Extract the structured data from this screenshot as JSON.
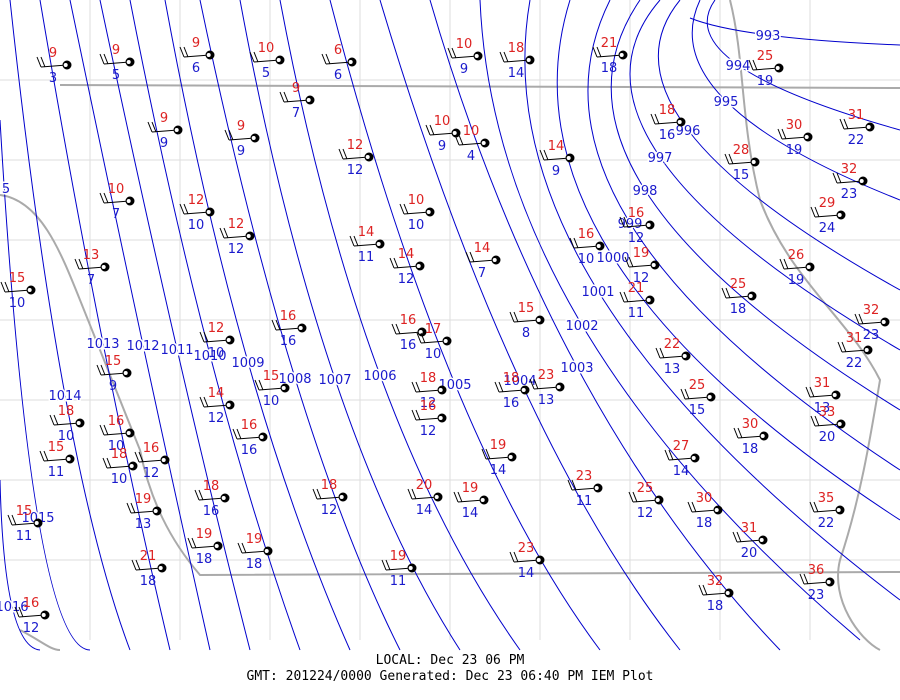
{
  "isobars": [
    {
      "label": "993"
    },
    {
      "label": "994"
    },
    {
      "label": "995"
    },
    {
      "label": "996"
    },
    {
      "label": "997"
    },
    {
      "label": "998"
    },
    {
      "label": "999"
    },
    {
      "label": "1000"
    },
    {
      "label": "1001"
    },
    {
      "label": "1002"
    },
    {
      "label": "1003"
    },
    {
      "label": "1004"
    },
    {
      "label": "1005"
    },
    {
      "label": "1006"
    },
    {
      "label": "1007"
    },
    {
      "label": "1008"
    },
    {
      "label": "1009"
    },
    {
      "label": "1010"
    },
    {
      "label": "1011"
    },
    {
      "label": "1012"
    },
    {
      "label": "1013"
    },
    {
      "label": "1014"
    },
    {
      "label": "1015"
    },
    {
      "label": "1016"
    },
    {
      "label": "5"
    }
  ],
  "stations": [
    {
      "temp": 9,
      "dewpoint": 3
    },
    {
      "temp": 9,
      "dewpoint": 5
    },
    {
      "temp": 9,
      "dewpoint": 6
    },
    {
      "temp": 10,
      "dewpoint": 5
    },
    {
      "temp": 6,
      "dewpoint": 6
    },
    {
      "temp": 10,
      "dewpoint": 9
    },
    {
      "temp": 18,
      "dewpoint": 14
    },
    {
      "temp": 21,
      "dewpoint": 18
    },
    {
      "temp": 25,
      "dewpoint": 19
    },
    {
      "temp": 9,
      "dewpoint": 7
    },
    {
      "temp": 9,
      "dewpoint": 9
    },
    {
      "temp": 9,
      "dewpoint": 9
    },
    {
      "temp": 12,
      "dewpoint": 12
    },
    {
      "temp": 10,
      "dewpoint": 9
    },
    {
      "temp": 10,
      "dewpoint": 4
    },
    {
      "temp": 14,
      "dewpoint": 9
    },
    {
      "temp": 18,
      "dewpoint": 16
    },
    {
      "temp": 30,
      "dewpoint": 19
    },
    {
      "temp": 31,
      "dewpoint": 22
    },
    {
      "temp": 28,
      "dewpoint": 15
    },
    {
      "temp": 32,
      "dewpoint": 23
    },
    {
      "temp": 29,
      "dewpoint": 24
    },
    {
      "temp": 10,
      "dewpoint": 7
    },
    {
      "temp": 12,
      "dewpoint": 10
    },
    {
      "temp": 12,
      "dewpoint": 12
    },
    {
      "temp": 10,
      "dewpoint": 10
    },
    {
      "temp": 14,
      "dewpoint": 11
    },
    {
      "temp": 14,
      "dewpoint": 12
    },
    {
      "temp": 14,
      "dewpoint": 7
    },
    {
      "temp": 16,
      "dewpoint": 10
    },
    {
      "temp": 16,
      "dewpoint": 12
    },
    {
      "temp": 15,
      "dewpoint": 10
    },
    {
      "temp": 13,
      "dewpoint": 7
    },
    {
      "temp": 21,
      "dewpoint": 11
    },
    {
      "temp": 19,
      "dewpoint": 12
    },
    {
      "temp": 25,
      "dewpoint": 18
    },
    {
      "temp": 26,
      "dewpoint": 19
    },
    {
      "temp": 32,
      "dewpoint": 23
    },
    {
      "temp": 31,
      "dewpoint": 22
    },
    {
      "temp": 12,
      "dewpoint": 10
    },
    {
      "temp": 16,
      "dewpoint": 16
    },
    {
      "temp": 16,
      "dewpoint": 16
    },
    {
      "temp": 17,
      "dewpoint": 10
    },
    {
      "temp": 15,
      "dewpoint": 8
    },
    {
      "temp": 15,
      "dewpoint": 9
    },
    {
      "temp": 15,
      "dewpoint": 10
    },
    {
      "temp": 14,
      "dewpoint": 12
    },
    {
      "temp": 18,
      "dewpoint": 12
    },
    {
      "temp": 16,
      "dewpoint": 12
    },
    {
      "temp": 18,
      "dewpoint": 16
    },
    {
      "temp": 23,
      "dewpoint": 13
    },
    {
      "temp": 22,
      "dewpoint": 13
    },
    {
      "temp": 25,
      "dewpoint": 15
    },
    {
      "temp": 31,
      "dewpoint": 13
    },
    {
      "temp": 33,
      "dewpoint": 20
    },
    {
      "temp": 18,
      "dewpoint": 10
    },
    {
      "temp": 15,
      "dewpoint": 11
    },
    {
      "temp": 16,
      "dewpoint": 10
    },
    {
      "temp": 18,
      "dewpoint": 10
    },
    {
      "temp": 16,
      "dewpoint": 12
    },
    {
      "temp": 16,
      "dewpoint": 16
    },
    {
      "temp": 19,
      "dewpoint": 14
    },
    {
      "temp": 23,
      "dewpoint": 11
    },
    {
      "temp": 25,
      "dewpoint": 12
    },
    {
      "temp": 27,
      "dewpoint": 14
    },
    {
      "temp": 30,
      "dewpoint": 18
    },
    {
      "temp": 18,
      "dewpoint": 16
    },
    {
      "temp": 19,
      "dewpoint": 13
    },
    {
      "temp": 18,
      "dewpoint": 12
    },
    {
      "temp": 20,
      "dewpoint": 14
    },
    {
      "temp": 19,
      "dewpoint": 14
    },
    {
      "temp": 30,
      "dewpoint": 18
    },
    {
      "temp": 31,
      "dewpoint": 20
    },
    {
      "temp": 35,
      "dewpoint": 22
    },
    {
      "temp": 15,
      "dewpoint": 11
    },
    {
      "temp": 19,
      "dewpoint": 18
    },
    {
      "temp": 19,
      "dewpoint": 18
    },
    {
      "temp": 21,
      "dewpoint": 18
    },
    {
      "temp": 19,
      "dewpoint": 11
    },
    {
      "temp": 23,
      "dewpoint": 14
    },
    {
      "temp": 32,
      "dewpoint": 18
    },
    {
      "temp": 36,
      "dewpoint": 23
    },
    {
      "temp": 16,
      "dewpoint": 12
    }
  ],
  "footer": {
    "local": "LOCAL: Dec 23 06 PM",
    "gmt": "GMT: 201224/0000 Generated: Dec 23 06:40 PM IEM Plot"
  }
}
